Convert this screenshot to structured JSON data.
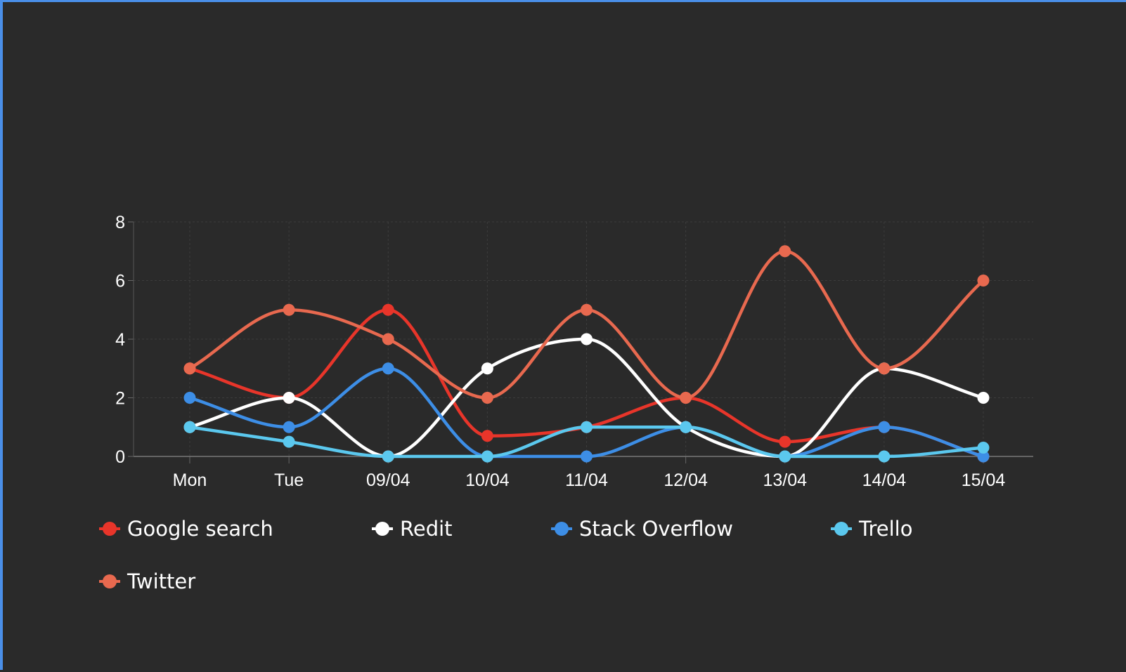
{
  "chart_data": {
    "type": "line",
    "categories": [
      "Mon",
      "Tue",
      "09/04",
      "10/04",
      "11/04",
      "12/04",
      "13/04",
      "14/04",
      "15/04"
    ],
    "ylim": [
      0,
      8
    ],
    "yticks": [
      "0",
      "2",
      "4",
      "6",
      "8"
    ],
    "grid": true,
    "legend_position": "bottom",
    "series": [
      {
        "name": "Google search",
        "color": "#e8352a",
        "values": [
          3,
          2,
          5,
          0.7,
          1,
          2,
          0.5,
          1,
          0
        ]
      },
      {
        "name": "Redit",
        "color": "#ffffff",
        "values": [
          1,
          2,
          0,
          3,
          4,
          1,
          0,
          3,
          2
        ]
      },
      {
        "name": "Stack Overflow",
        "color": "#3d8ee6",
        "values": [
          2,
          1,
          3,
          0,
          0,
          1,
          0,
          1,
          0
        ]
      },
      {
        "name": "Trello",
        "color": "#5bc8ee",
        "values": [
          1,
          0.5,
          0,
          0,
          1,
          1,
          0,
          0,
          0.3
        ]
      },
      {
        "name": "Twitter",
        "color": "#e8694f",
        "values": [
          3,
          5,
          4,
          2,
          5,
          2,
          7,
          3,
          6
        ]
      }
    ]
  }
}
